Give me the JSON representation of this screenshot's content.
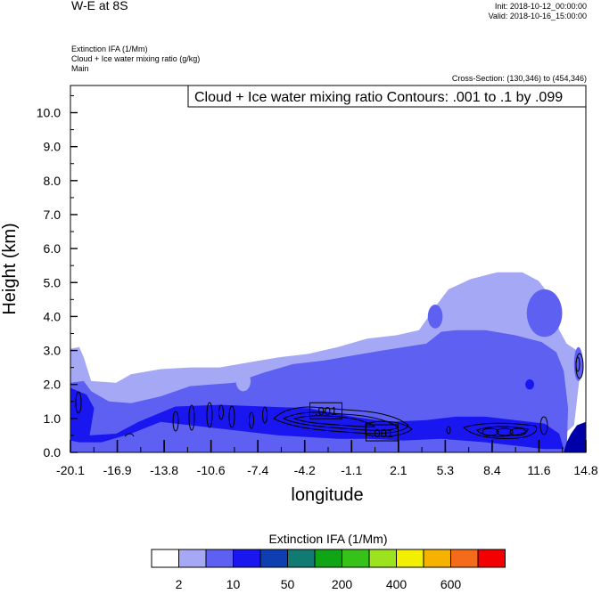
{
  "header": {
    "title": "W-E at 8S",
    "init": "Init: 2018-10-12_00:00:00",
    "valid": "Valid: 2018-10-16_15:00:00",
    "fields": [
      "Extinction IFA   (1/Mm)",
      "Cloud + Ice water mixing ratio   (g/kg)",
      "Main"
    ],
    "cross_section": "Cross-Section: (130,346) to (454,346)"
  },
  "chart_data": {
    "type": "heatmap",
    "title": "W-E at 8S",
    "xlabel": "longitude",
    "ylabel": "Height (km)",
    "xlim": [
      -20.1,
      14.8
    ],
    "ylim": [
      0.0,
      10.8
    ],
    "x_ticks": [
      "-20.1",
      "-16.9",
      "-13.8",
      "-10.6",
      "-7.4",
      "-4.2",
      "-1.1",
      "2.1",
      "5.3",
      "8.4",
      "11.6",
      "14.8"
    ],
    "y_ticks": [
      "0.0",
      "1.0",
      "2.0",
      "3.0",
      "4.0",
      "5.0",
      "6.0",
      "7.0",
      "8.0",
      "9.0",
      "10.0"
    ],
    "contour_info": "Cloud + Ice water mixing ratio Contours: .001 to .1 by .099",
    "contour_labels": [
      {
        "text": ".001",
        "x": -2.8,
        "y": 1.2
      },
      {
        "text": ".001",
        "x": 1.0,
        "y": 0.55
      }
    ],
    "shaded_regions": [
      {
        "level": 1,
        "color": "#a5a8f4",
        "points": [
          [
            -20.1,
            0
          ],
          [
            -20.1,
            3.05
          ],
          [
            -19.5,
            3.1
          ],
          [
            -19.2,
            2.8
          ],
          [
            -18.7,
            2.1
          ],
          [
            -17.0,
            2.05
          ],
          [
            -16.0,
            2.3
          ],
          [
            -14.0,
            2.45
          ],
          [
            -12.0,
            2.5
          ],
          [
            -10.0,
            2.5
          ],
          [
            -8.0,
            2.65
          ],
          [
            -6.0,
            2.8
          ],
          [
            -4.0,
            2.9
          ],
          [
            -2.0,
            3.1
          ],
          [
            0.0,
            3.35
          ],
          [
            2.0,
            3.45
          ],
          [
            3.5,
            3.6
          ],
          [
            4.8,
            4.4
          ],
          [
            5.5,
            4.8
          ],
          [
            7.0,
            5.1
          ],
          [
            8.8,
            5.3
          ],
          [
            10.5,
            5.3
          ],
          [
            11.6,
            5.05
          ],
          [
            12.4,
            4.6
          ],
          [
            13.0,
            3.6
          ],
          [
            13.5,
            3.2
          ],
          [
            14.2,
            3.0
          ],
          [
            14.4,
            2.3
          ],
          [
            14.0,
            0.8
          ],
          [
            13.5,
            0.6
          ],
          [
            13.2,
            0
          ]
        ]
      },
      {
        "level": 2,
        "color": "#5d60f1",
        "points": [
          [
            -20.1,
            0
          ],
          [
            -20.1,
            2.05
          ],
          [
            -19.2,
            2.1
          ],
          [
            -18.7,
            1.8
          ],
          [
            -17.5,
            1.5
          ],
          [
            -16.0,
            1.45
          ],
          [
            -14.0,
            1.65
          ],
          [
            -12.0,
            1.95
          ],
          [
            -9.0,
            2.05
          ],
          [
            -7.0,
            2.35
          ],
          [
            -5.0,
            2.6
          ],
          [
            -3.0,
            2.7
          ],
          [
            -1.0,
            2.85
          ],
          [
            1.0,
            3.0
          ],
          [
            2.5,
            3.1
          ],
          [
            4.0,
            3.2
          ],
          [
            5.0,
            3.55
          ],
          [
            6.0,
            3.6
          ],
          [
            8.0,
            3.6
          ],
          [
            10.0,
            3.45
          ],
          [
            11.8,
            3.25
          ],
          [
            12.8,
            2.95
          ],
          [
            13.3,
            2.4
          ],
          [
            13.6,
            1.3
          ],
          [
            13.5,
            0
          ]
        ]
      },
      {
        "level": 3,
        "color": "#1a16f0",
        "points": [
          [
            -20.1,
            0.35
          ],
          [
            -20.1,
            1.9
          ],
          [
            -19.0,
            1.7
          ],
          [
            -18.5,
            1.3
          ],
          [
            -18.8,
            0.5
          ],
          [
            -17.0,
            0.55
          ],
          [
            -15.5,
            0.9
          ],
          [
            -13.0,
            1.35
          ],
          [
            -10.0,
            1.4
          ],
          [
            -7.0,
            1.35
          ],
          [
            -4.0,
            1.3
          ],
          [
            -1.0,
            1.05
          ],
          [
            1.5,
            0.9
          ],
          [
            4.0,
            0.95
          ],
          [
            6.0,
            1.05
          ],
          [
            8.0,
            1.05
          ],
          [
            10.0,
            0.95
          ],
          [
            12.0,
            0.85
          ],
          [
            13.0,
            0.55
          ],
          [
            13.3,
            0.1
          ],
          [
            12.0,
            0.1
          ],
          [
            10.0,
            0.2
          ],
          [
            8.0,
            0.3
          ],
          [
            5.0,
            0.4
          ],
          [
            2.5,
            0.35
          ],
          [
            0.0,
            0.4
          ],
          [
            -2.0,
            0.4
          ],
          [
            -6.0,
            0.5
          ],
          [
            -10.0,
            0.7
          ],
          [
            -14.0,
            0.9
          ],
          [
            -16.0,
            0.55
          ],
          [
            -18.0,
            0.3
          ],
          [
            -19.5,
            0.3
          ]
        ]
      },
      {
        "level": 4,
        "color": "#0000a8",
        "points": [
          [
            13.3,
            0
          ],
          [
            14.8,
            0
          ],
          [
            14.8,
            0.9
          ],
          [
            14.2,
            0.8
          ],
          [
            13.8,
            0.55
          ],
          [
            13.5,
            0.3
          ]
        ]
      }
    ],
    "colorbar": {
      "title": "Extinction IFA  (1/Mm)",
      "colors": [
        "#ffffff",
        "#a5a8f4",
        "#5d60f1",
        "#1a16f0",
        "#0f3eb2",
        "#107a73",
        "#10a515",
        "#37c21a",
        "#9ce21e",
        "#f2f000",
        "#f6b200",
        "#f46c1a",
        "#f50000"
      ],
      "labels": [
        {
          "text": "2",
          "after_box": 1
        },
        {
          "text": "10",
          "after_box": 3
        },
        {
          "text": "50",
          "after_box": 5
        },
        {
          "text": "200",
          "after_box": 7
        },
        {
          "text": "400",
          "after_box": 9
        },
        {
          "text": "600",
          "after_box": 11
        }
      ]
    }
  }
}
